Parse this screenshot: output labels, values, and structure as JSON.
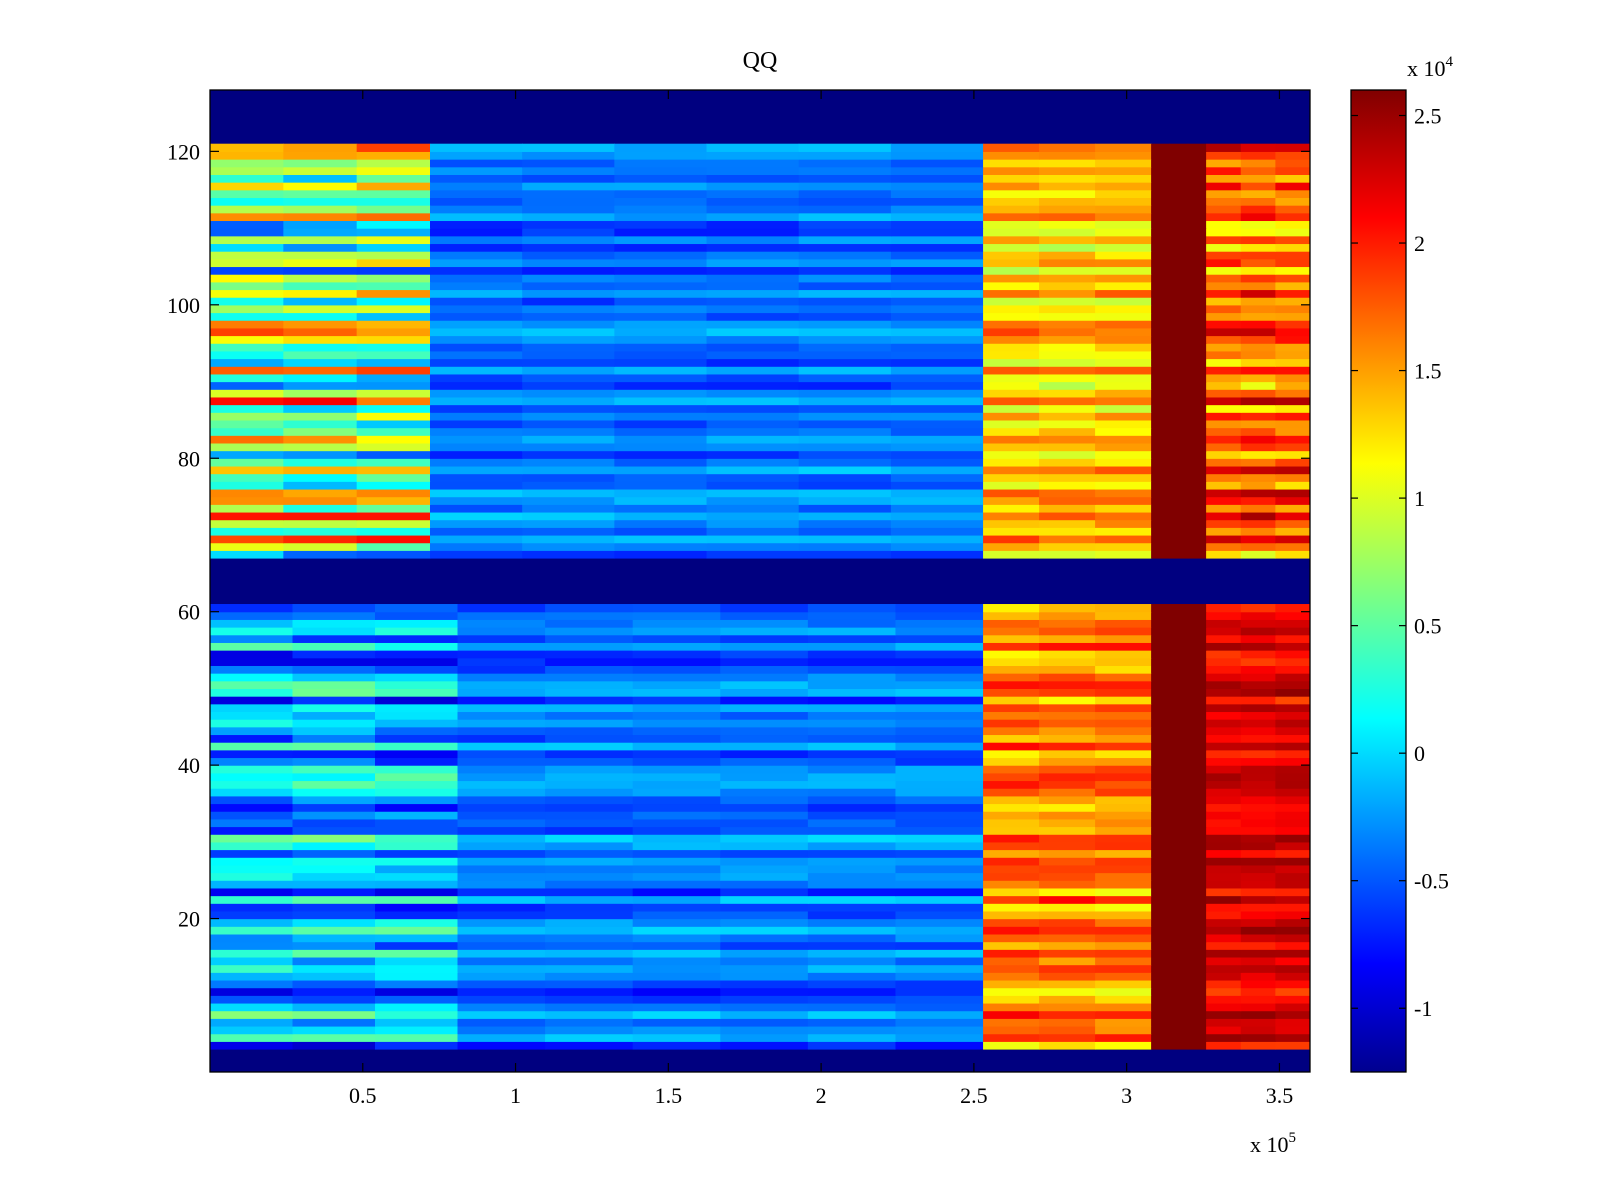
{
  "chart_data": {
    "type": "heatmap",
    "title": "QQ",
    "xlabel": "",
    "ylabel": "",
    "x_multiplier_label": {
      "base": "x 10",
      "exp": "5"
    },
    "colorbar_multiplier_label": {
      "base": "x 10",
      "exp": "4"
    },
    "xlim": [
      0,
      3.6
    ],
    "ylim": [
      0,
      128
    ],
    "x_ticks": [
      0.5,
      1,
      1.5,
      2,
      2.5,
      3,
      3.5
    ],
    "x_tick_labels": [
      "0.5",
      "1",
      "1.5",
      "2",
      "2.5",
      "3",
      "3.5"
    ],
    "y_ticks": [
      20,
      40,
      60,
      80,
      100,
      120
    ],
    "y_tick_labels": [
      "20",
      "40",
      "60",
      "80",
      "100",
      "120"
    ],
    "colorbar": {
      "colormap": "jet",
      "range": [
        -1.25,
        2.6
      ],
      "ticks": [
        -1,
        -0.5,
        0,
        0.5,
        1,
        1.5,
        2,
        2.5
      ],
      "tick_labels": [
        "-1",
        "-0.5",
        "0",
        "0.5",
        "1",
        "1.5",
        "2",
        "2.5"
      ]
    },
    "empty_row_bands": [
      [
        0,
        3
      ],
      [
        61,
        67
      ],
      [
        121,
        128
      ]
    ],
    "upper_block": {
      "y_range": [
        67,
        121
      ],
      "x_segments": [
        {
          "x": [
            0,
            0.72
          ],
          "value_range": [
            -0.6,
            2.3
          ]
        },
        {
          "x": [
            0.72,
            2.53
          ],
          "value_range": [
            -0.7,
            0.1
          ]
        },
        {
          "x": [
            2.53,
            3.08
          ],
          "value_range": [
            0.8,
            2.0
          ]
        },
        {
          "x": [
            3.08,
            3.26
          ],
          "value_range": [
            2.6,
            2.6
          ]
        },
        {
          "x": [
            3.26,
            3.6
          ],
          "value_range": [
            1.0,
            2.6
          ]
        }
      ]
    },
    "lower_block": {
      "y_range": [
        3,
        61
      ],
      "x_segments": [
        {
          "x": [
            0,
            0.81
          ],
          "value_range": [
            -1.1,
            0.8
          ]
        },
        {
          "x": [
            0.81,
            2.53
          ],
          "value_range": [
            -0.8,
            0.1
          ]
        },
        {
          "x": [
            2.53,
            3.08
          ],
          "value_range": [
            1.0,
            2.2
          ]
        },
        {
          "x": [
            3.08,
            3.26
          ],
          "value_range": [
            2.6,
            2.6
          ]
        },
        {
          "x": [
            3.26,
            3.6
          ],
          "value_range": [
            1.8,
            2.6
          ]
        }
      ]
    },
    "grid": false,
    "legend": "colorbar-right"
  }
}
